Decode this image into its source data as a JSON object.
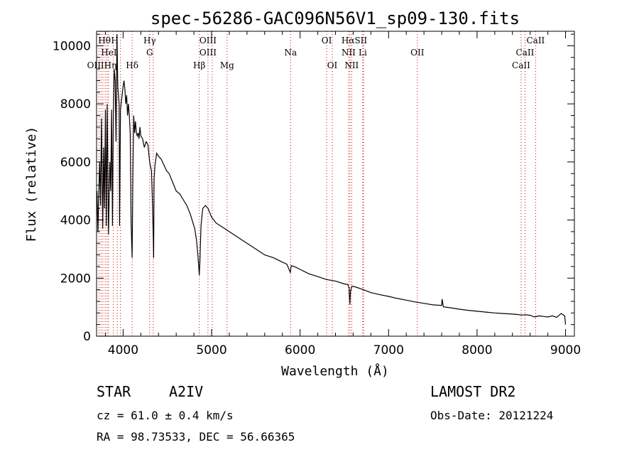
{
  "chart_data": {
    "type": "line",
    "title": "spec-56286-GAC096N56V1_sp09-130.fits",
    "xlabel": "Wavelength (Å)",
    "ylabel": "Flux (relative)",
    "xlim": [
      3700,
      9100
    ],
    "ylim": [
      0,
      10500
    ],
    "xticks": [
      4000,
      5000,
      6000,
      7000,
      8000,
      9000
    ],
    "xtick_labels": [
      "4000",
      "5000",
      "6000",
      "7000",
      "8000",
      "9000"
    ],
    "yticks": [
      0,
      2000,
      4000,
      6000,
      8000,
      10000
    ],
    "ytick_labels": [
      "0",
      "2000",
      "4000",
      "6000",
      "8000",
      "10000"
    ],
    "grid": false,
    "series": [
      {
        "color": "#000000",
        "x": [
          3705,
          3715,
          3725,
          3735,
          3745,
          3755,
          3770,
          3780,
          3790,
          3800,
          3810,
          3820,
          3835,
          3850,
          3860,
          3870,
          3880,
          3889,
          3900,
          3910,
          3920,
          3930,
          3940,
          3955,
          3960,
          3970,
          3985,
          4000,
          4010,
          4020,
          4030,
          4040,
          4050,
          4060,
          4070,
          4080,
          4090,
          4102,
          4110,
          4120,
          4130,
          4140,
          4150,
          4160,
          4170,
          4180,
          4190,
          4200,
          4220,
          4240,
          4260,
          4280,
          4300,
          4320,
          4330,
          4340,
          4345,
          4350,
          4360,
          4380,
          4400,
          4430,
          4460,
          4490,
          4520,
          4560,
          4600,
          4640,
          4680,
          4720,
          4760,
          4790,
          4810,
          4830,
          4845,
          4855,
          4861,
          4868,
          4880,
          4900,
          4930,
          4960,
          5000,
          5050,
          5100,
          5150,
          5200,
          5300,
          5400,
          5500,
          5600,
          5700,
          5800,
          5850,
          5890,
          5900,
          5950,
          6000,
          6100,
          6200,
          6300,
          6400,
          6500,
          6540,
          6555,
          6563,
          6570,
          6585,
          6620,
          6700,
          6800,
          6900,
          7000,
          7100,
          7200,
          7300,
          7400,
          7500,
          7600,
          7605,
          7620,
          7700,
          7800,
          7900,
          8000,
          8100,
          8200,
          8300,
          8400,
          8450,
          8500,
          8550,
          8600,
          8650,
          8700,
          8750,
          8800,
          8850,
          8900,
          8950,
          8990,
          9000
        ],
        "y": [
          5000,
          3600,
          4900,
          6000,
          4500,
          7500,
          3700,
          6500,
          4400,
          7800,
          3800,
          8000,
          3500,
          6000,
          5000,
          7800,
          3800,
          7600,
          9200,
          8800,
          6700,
          10400,
          8600,
          8000,
          3800,
          7800,
          8200,
          8600,
          8800,
          8500,
          8000,
          8300,
          7600,
          8000,
          7600,
          7000,
          4000,
          2700,
          5500,
          7600,
          7000,
          7400,
          7000,
          6900,
          7000,
          6800,
          7200,
          6900,
          6800,
          6500,
          6700,
          6600,
          6000,
          5700,
          4800,
          3500,
          2700,
          5400,
          5900,
          6300,
          6200,
          6100,
          5900,
          5700,
          5600,
          5300,
          5000,
          4900,
          4700,
          4500,
          4200,
          3900,
          3700,
          3300,
          2800,
          2400,
          2100,
          2600,
          3800,
          4400,
          4500,
          4400,
          4100,
          3900,
          3800,
          3700,
          3600,
          3400,
          3200,
          3000,
          2800,
          2700,
          2550,
          2480,
          2200,
          2430,
          2380,
          2300,
          2150,
          2050,
          1950,
          1900,
          1800,
          1780,
          1650,
          1100,
          1550,
          1720,
          1700,
          1620,
          1500,
          1430,
          1370,
          1300,
          1240,
          1180,
          1130,
          1080,
          1060,
          1280,
          1010,
          980,
          930,
          890,
          860,
          830,
          800,
          780,
          760,
          750,
          730,
          740,
          720,
          660,
          700,
          680,
          660,
          700,
          650,
          780,
          700,
          400
        ]
      }
    ],
    "line_markers": {
      "wavelengths": [
        3727,
        3750,
        3771,
        3797,
        3819,
        3835,
        3889,
        3934,
        3970,
        4102,
        4300,
        4340,
        4861,
        4959,
        5007,
        5175,
        5893,
        6300,
        6364,
        6548,
        6563,
        6583,
        6708,
        6717,
        7325,
        8498,
        8542,
        8662
      ],
      "labels": [
        {
          "text": "Hθ",
          "x": 3790,
          "row": 1
        },
        {
          "text": "H",
          "x": 3905,
          "row": 1
        },
        {
          "text": "Hγ",
          "x": 4300,
          "row": 1
        },
        {
          "text": "OIII",
          "x": 4959,
          "row": 1
        },
        {
          "text": "OI",
          "x": 6300,
          "row": 1
        },
        {
          "text": "HαSII",
          "x": 6613,
          "row": 1
        },
        {
          "text": "CaII",
          "x": 8662,
          "row": 1
        },
        {
          "text": "HeI",
          "x": 3840,
          "row": 2
        },
        {
          "text": "G",
          "x": 4300,
          "row": 2
        },
        {
          "text": "OIII",
          "x": 4959,
          "row": 2
        },
        {
          "text": "Na",
          "x": 5893,
          "row": 2
        },
        {
          "text": "NII",
          "x": 6548,
          "row": 2
        },
        {
          "text": "Li",
          "x": 6708,
          "row": 2
        },
        {
          "text": "OII",
          "x": 7325,
          "row": 2
        },
        {
          "text": "CaII",
          "x": 8542,
          "row": 2
        },
        {
          "text": "OIIIHη",
          "x": 3760,
          "row": 3
        },
        {
          "text": "Hδ",
          "x": 4102,
          "row": 3
        },
        {
          "text": "Hβ",
          "x": 4861,
          "row": 3
        },
        {
          "text": "Mg",
          "x": 5175,
          "row": 3
        },
        {
          "text": "OI",
          "x": 6364,
          "row": 3
        },
        {
          "text": "NII",
          "x": 6583,
          "row": 3
        },
        {
          "text": "CaII",
          "x": 8498,
          "row": 3
        }
      ]
    }
  },
  "info": {
    "object_type": "STAR",
    "subclass": "A2IV",
    "survey": "LAMOST DR2",
    "cz": "cz = 61.0 ± 0.4 km/s",
    "obs_date": "Obs-Date: 20121224",
    "coords": "RA =  98.73533, DEC =  56.66365"
  },
  "colors": {
    "spectrum": "#000000",
    "line_marker": "#d00000",
    "axes": "#000000"
  }
}
